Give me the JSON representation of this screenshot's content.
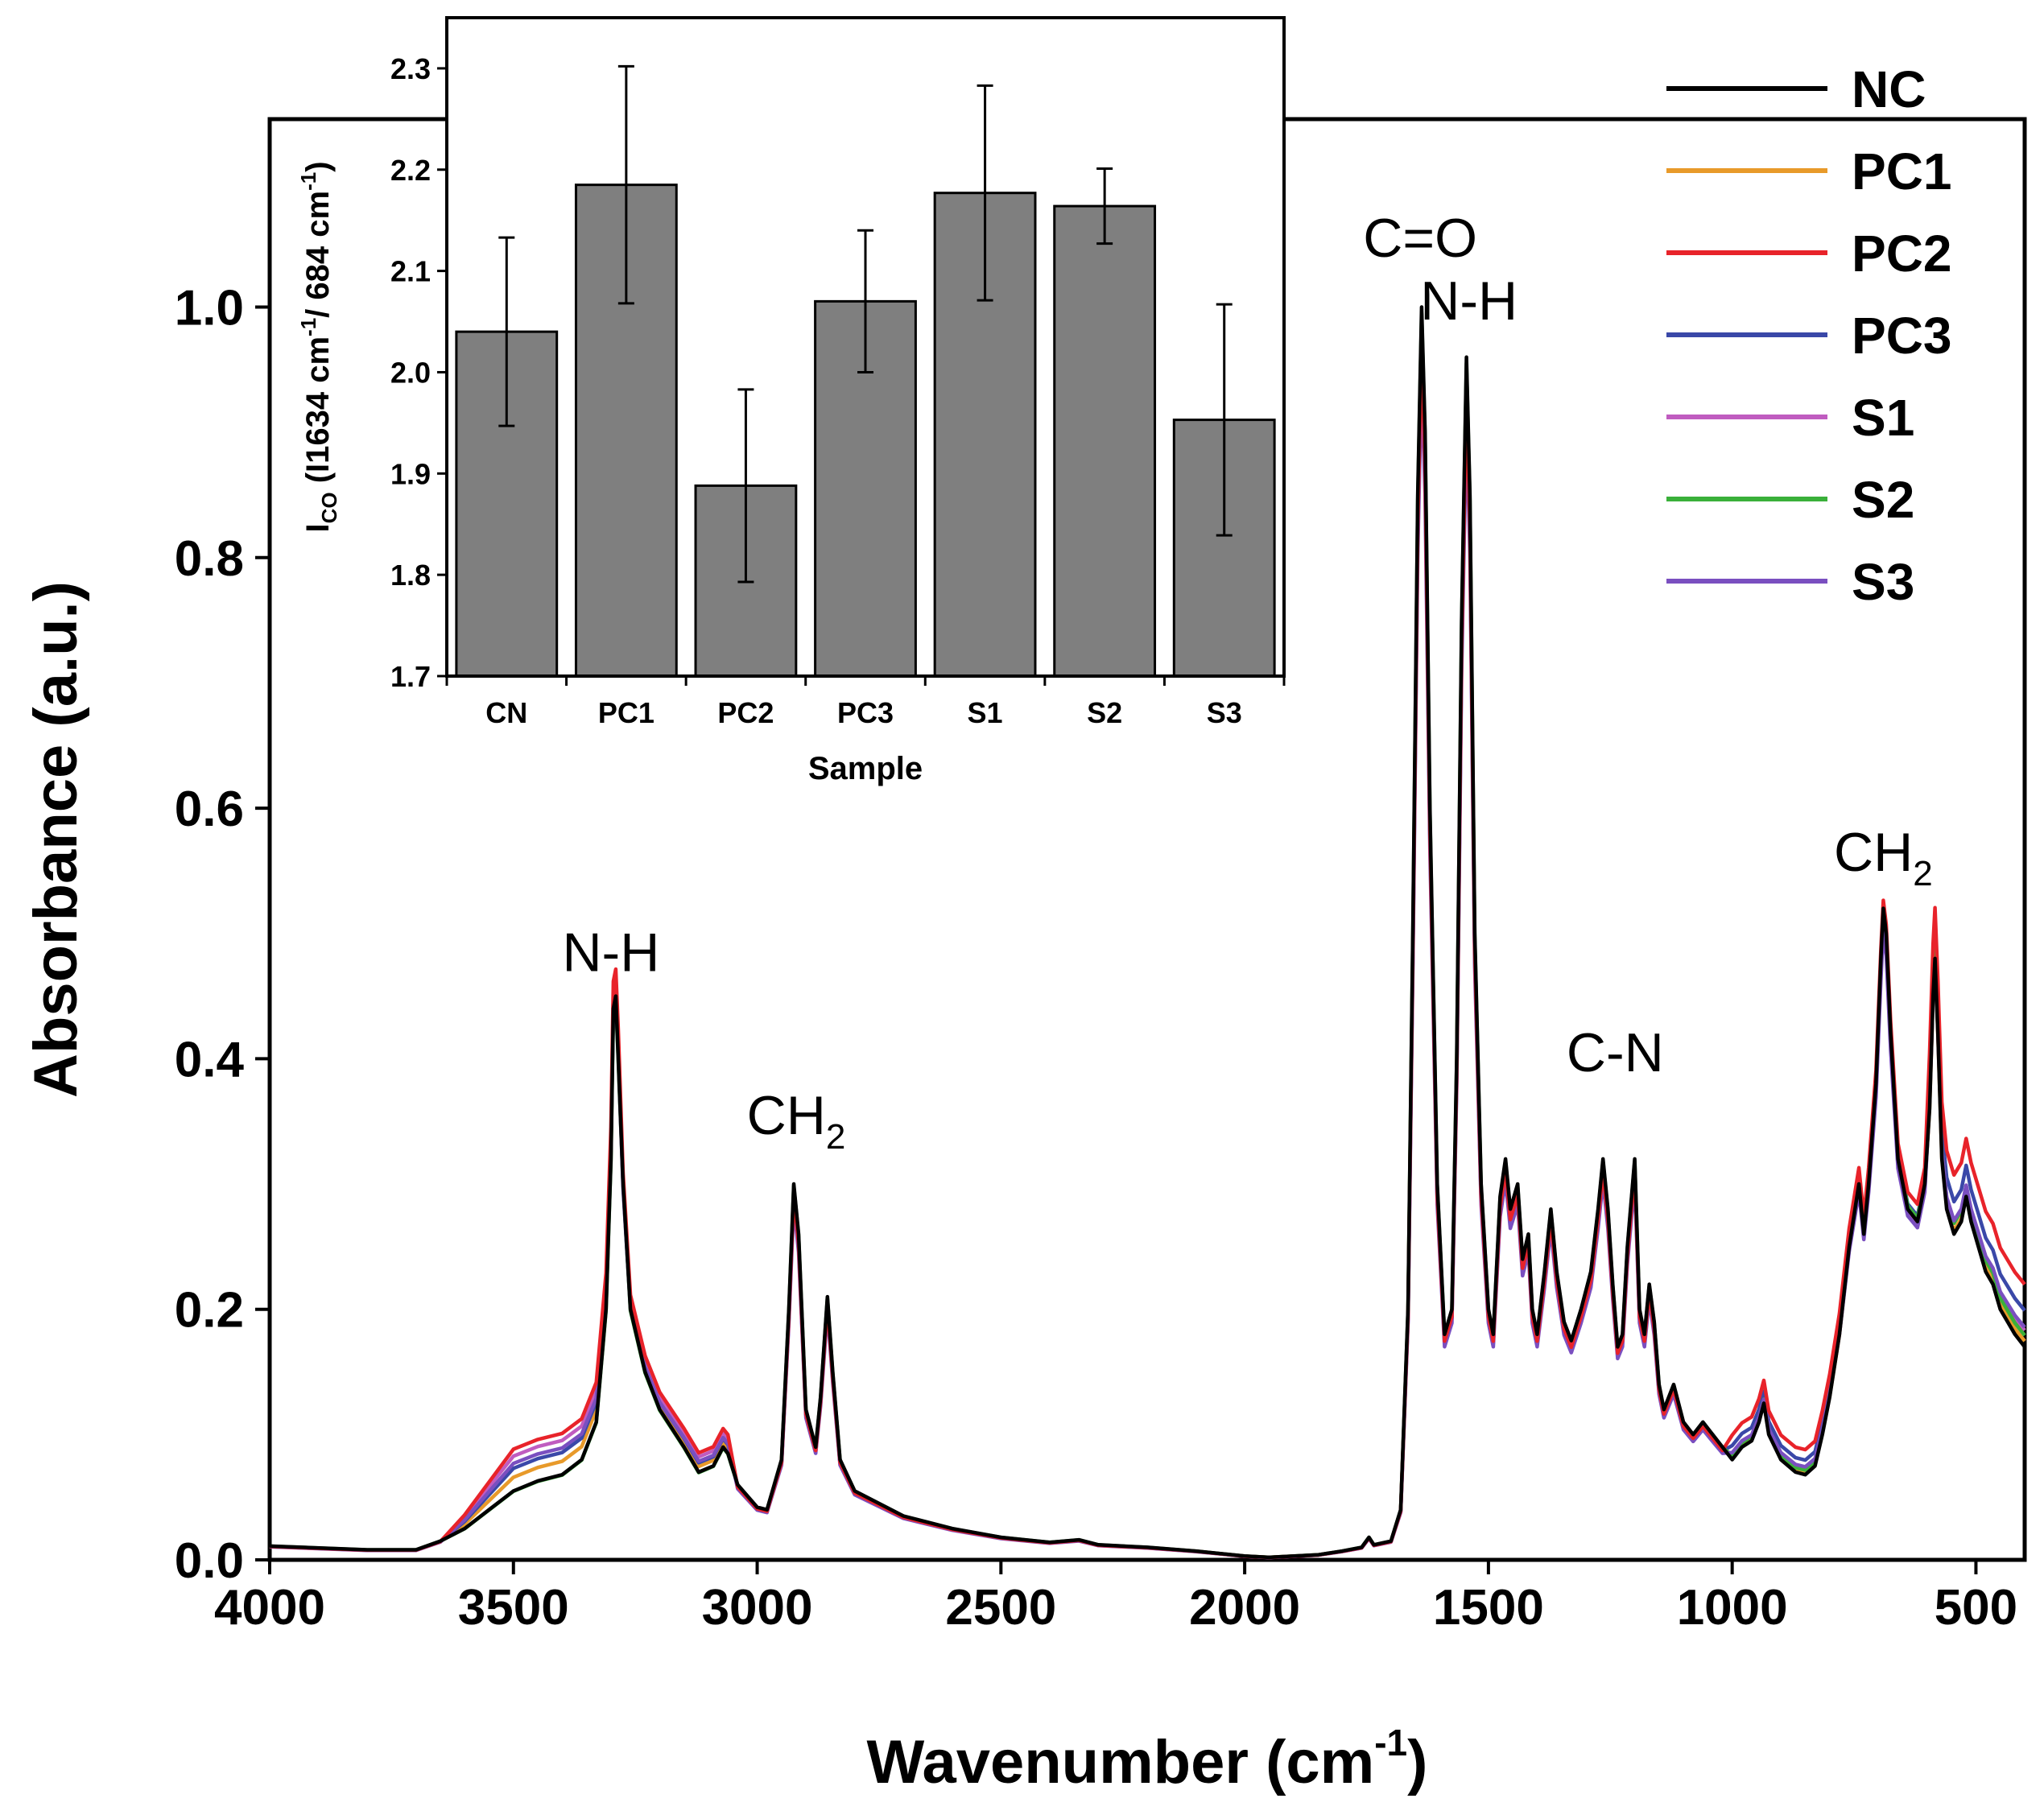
{
  "chart_data": [
    {
      "type": "line",
      "title": "",
      "xlabel": "Wavenumber (cm",
      "xlabel_sup": "-1",
      "xlabel_close": ")",
      "ylabel": "Absorbance (a.u.)",
      "xlim": [
        4000,
        400
      ],
      "ylim": [
        0,
        1.15
      ],
      "x_ticks": [
        4000,
        3500,
        3000,
        2500,
        2000,
        1500,
        1000,
        500
      ],
      "x_tick_labels": [
        "4000",
        "3500",
        "3000",
        "2500",
        "2000",
        "1500",
        "1000",
        "500"
      ],
      "y_ticks": [
        0.0,
        0.2,
        0.4,
        0.6,
        0.8,
        1.0
      ],
      "y_tick_labels": [
        "0.0",
        "0.2",
        "0.4",
        "0.6",
        "0.8",
        "1.0"
      ],
      "legend_position": "top-right",
      "annotations": [
        {
          "text": "N-H",
          "sub": "",
          "x": 3300,
          "y": 0.47
        },
        {
          "text": "CH",
          "sub": "2",
          "x": 2920,
          "y": 0.34
        },
        {
          "text": "C=O",
          "sub": "",
          "x": 1640,
          "y": 1.04
        },
        {
          "text": "N-H",
          "sub": "",
          "x": 1540,
          "y": 0.99
        },
        {
          "text": "C-N",
          "sub": "",
          "x": 1240,
          "y": 0.39
        },
        {
          "text": "CH",
          "sub": "2",
          "x": 690,
          "y": 0.55
        }
      ],
      "base_spectrum": [
        [
          4000,
          0.011
        ],
        [
          3800,
          0.008
        ],
        [
          3700,
          0.008
        ],
        [
          3650,
          0.015
        ],
        [
          3600,
          0.025
        ],
        [
          3550,
          0.04
        ],
        [
          3500,
          0.055
        ],
        [
          3450,
          0.063
        ],
        [
          3400,
          0.068
        ],
        [
          3360,
          0.08
        ],
        [
          3330,
          0.11
        ],
        [
          3310,
          0.2
        ],
        [
          3300,
          0.32
        ],
        [
          3295,
          0.44
        ],
        [
          3290,
          0.45
        ],
        [
          3285,
          0.4
        ],
        [
          3275,
          0.3
        ],
        [
          3260,
          0.2
        ],
        [
          3230,
          0.15
        ],
        [
          3200,
          0.12
        ],
        [
          3150,
          0.09
        ],
        [
          3120,
          0.07
        ],
        [
          3090,
          0.075
        ],
        [
          3070,
          0.09
        ],
        [
          3060,
          0.085
        ],
        [
          3040,
          0.06
        ],
        [
          3000,
          0.042
        ],
        [
          2980,
          0.04
        ],
        [
          2950,
          0.08
        ],
        [
          2935,
          0.2
        ],
        [
          2925,
          0.3
        ],
        [
          2915,
          0.26
        ],
        [
          2900,
          0.12
        ],
        [
          2880,
          0.09
        ],
        [
          2870,
          0.13
        ],
        [
          2856,
          0.21
        ],
        [
          2845,
          0.15
        ],
        [
          2830,
          0.08
        ],
        [
          2800,
          0.055
        ],
        [
          2700,
          0.035
        ],
        [
          2600,
          0.025
        ],
        [
          2500,
          0.018
        ],
        [
          2400,
          0.014
        ],
        [
          2340,
          0.016
        ],
        [
          2300,
          0.012
        ],
        [
          2200,
          0.01
        ],
        [
          2100,
          0.007
        ],
        [
          2000,
          0.003
        ],
        [
          1950,
          0.002
        ],
        [
          1850,
          0.004
        ],
        [
          1800,
          0.007
        ],
        [
          1760,
          0.01
        ],
        [
          1745,
          0.018
        ],
        [
          1735,
          0.012
        ],
        [
          1700,
          0.015
        ],
        [
          1680,
          0.04
        ],
        [
          1665,
          0.2
        ],
        [
          1655,
          0.5
        ],
        [
          1645,
          0.85
        ],
        [
          1637,
          1.0
        ],
        [
          1630,
          0.9
        ],
        [
          1620,
          0.6
        ],
        [
          1605,
          0.3
        ],
        [
          1590,
          0.18
        ],
        [
          1575,
          0.2
        ],
        [
          1565,
          0.4
        ],
        [
          1555,
          0.75
        ],
        [
          1545,
          0.96
        ],
        [
          1538,
          0.85
        ],
        [
          1528,
          0.5
        ],
        [
          1515,
          0.3
        ],
        [
          1500,
          0.2
        ],
        [
          1490,
          0.18
        ],
        [
          1476,
          0.29
        ],
        [
          1465,
          0.32
        ],
        [
          1455,
          0.28
        ],
        [
          1440,
          0.3
        ],
        [
          1430,
          0.24
        ],
        [
          1418,
          0.26
        ],
        [
          1410,
          0.2
        ],
        [
          1400,
          0.18
        ],
        [
          1385,
          0.23
        ],
        [
          1372,
          0.28
        ],
        [
          1360,
          0.23
        ],
        [
          1345,
          0.19
        ],
        [
          1330,
          0.175
        ],
        [
          1310,
          0.2
        ],
        [
          1290,
          0.23
        ],
        [
          1275,
          0.28
        ],
        [
          1265,
          0.32
        ],
        [
          1255,
          0.28
        ],
        [
          1245,
          0.22
        ],
        [
          1235,
          0.17
        ],
        [
          1225,
          0.18
        ],
        [
          1215,
          0.25
        ],
        [
          1200,
          0.32
        ],
        [
          1190,
          0.2
        ],
        [
          1180,
          0.18
        ],
        [
          1170,
          0.22
        ],
        [
          1160,
          0.19
        ],
        [
          1150,
          0.14
        ],
        [
          1140,
          0.12
        ],
        [
          1120,
          0.14
        ],
        [
          1100,
          0.11
        ],
        [
          1080,
          0.1
        ],
        [
          1060,
          0.11
        ],
        [
          1040,
          0.1
        ],
        [
          1020,
          0.09
        ],
        [
          1000,
          0.08
        ],
        [
          980,
          0.09
        ],
        [
          960,
          0.095
        ],
        [
          945,
          0.11
        ],
        [
          935,
          0.125
        ],
        [
          925,
          0.1
        ],
        [
          900,
          0.08
        ],
        [
          870,
          0.07
        ],
        [
          850,
          0.068
        ],
        [
          830,
          0.075
        ],
        [
          815,
          0.1
        ],
        [
          800,
          0.13
        ],
        [
          780,
          0.18
        ],
        [
          760,
          0.25
        ],
        [
          740,
          0.3
        ],
        [
          730,
          0.26
        ],
        [
          720,
          0.3
        ],
        [
          705,
          0.38
        ],
        [
          695,
          0.48
        ],
        [
          690,
          0.52
        ],
        [
          684,
          0.5
        ],
        [
          675,
          0.42
        ],
        [
          660,
          0.32
        ],
        [
          640,
          0.28
        ],
        [
          620,
          0.27
        ],
        [
          605,
          0.3
        ],
        [
          595,
          0.36
        ],
        [
          588,
          0.45
        ],
        [
          584,
          0.48
        ],
        [
          578,
          0.42
        ],
        [
          570,
          0.32
        ],
        [
          560,
          0.28
        ],
        [
          545,
          0.26
        ],
        [
          530,
          0.27
        ],
        [
          520,
          0.29
        ],
        [
          510,
          0.27
        ],
        [
          495,
          0.25
        ],
        [
          480,
          0.23
        ],
        [
          465,
          0.22
        ],
        [
          450,
          0.2
        ],
        [
          435,
          0.19
        ],
        [
          420,
          0.18
        ],
        [
          400,
          0.17
        ]
      ],
      "series": [
        {
          "name": "NC",
          "color": "#000000",
          "scale": 1.0,
          "offset_hi": 0.0,
          "offset_fp": 0.0
        },
        {
          "name": "PC1",
          "color": "#e89a2a",
          "scale": 0.98,
          "offset_hi": 0.012,
          "offset_fp": 0.008
        },
        {
          "name": "PC2",
          "color": "#e8232a",
          "scale": 0.97,
          "offset_hi": 0.035,
          "offset_fp": 0.055
        },
        {
          "name": "PC3",
          "color": "#3a48a8",
          "scale": 0.965,
          "offset_hi": 0.02,
          "offset_fp": 0.035
        },
        {
          "name": "S1",
          "color": "#c05cc0",
          "scale": 0.96,
          "offset_hi": 0.03,
          "offset_fp": 0.02
        },
        {
          "name": "S2",
          "color": "#3ab03a",
          "scale": 0.995,
          "offset_hi": 0.0,
          "offset_fp": 0.01
        },
        {
          "name": "S3",
          "color": "#7a4fc0",
          "scale": 0.945,
          "offset_hi": 0.025,
          "offset_fp": 0.025
        }
      ]
    },
    {
      "type": "bar",
      "title": "",
      "xlabel": "Sample",
      "ylabel_main": "I",
      "ylabel_sub": "CO",
      "ylabel_rest": " (I1634 cm",
      "ylabel_sup1": "-1",
      "ylabel_mid": "/ 684 cm",
      "ylabel_sup2": "-1",
      "ylabel_end": ")",
      "ylim": [
        1.7,
        2.35
      ],
      "y_ticks": [
        1.7,
        1.8,
        1.9,
        2.0,
        2.1,
        2.2,
        2.3
      ],
      "y_tick_labels": [
        "1.7",
        "1.8",
        "1.9",
        "2.0",
        "2.1",
        "2.2",
        "2.3"
      ],
      "categories": [
        "CN",
        "PC1",
        "PC2",
        "PC3",
        "S1",
        "S2",
        "S3"
      ],
      "values": [
        2.04,
        2.185,
        1.888,
        2.07,
        2.177,
        2.164,
        1.953
      ],
      "errors": [
        0.093,
        0.117,
        0.095,
        0.07,
        0.106,
        0.037,
        0.114
      ],
      "bar_color": "#7f7f7f"
    }
  ]
}
